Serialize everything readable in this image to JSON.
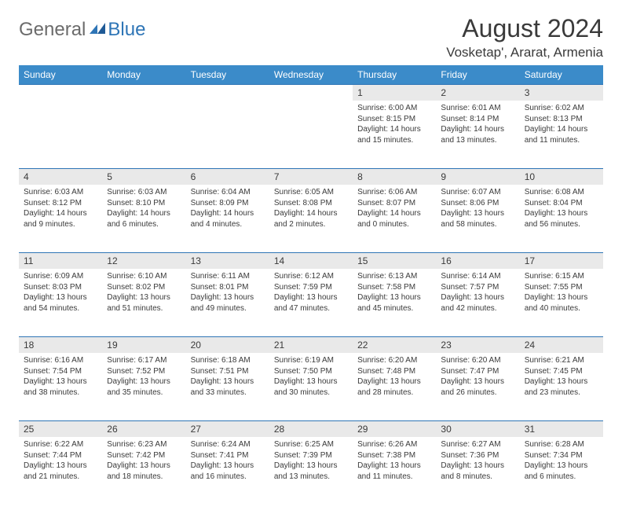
{
  "brand": {
    "part1": "General",
    "part2": "Blue"
  },
  "title": "August 2024",
  "location": "Vosketap', Ararat, Armenia",
  "colors": {
    "header_bg": "#3b8bc9",
    "daynum_bg": "#e9e9e9",
    "border": "#2e75b6",
    "text": "#3a3a3a",
    "logo_gray": "#6b6b6b",
    "logo_blue": "#2e75b6",
    "background": "#ffffff"
  },
  "day_headers": [
    "Sunday",
    "Monday",
    "Tuesday",
    "Wednesday",
    "Thursday",
    "Friday",
    "Saturday"
  ],
  "weeks": [
    [
      null,
      null,
      null,
      null,
      {
        "n": "1",
        "sr": "6:00 AM",
        "ss": "8:15 PM",
        "dl": "14 hours and 15 minutes."
      },
      {
        "n": "2",
        "sr": "6:01 AM",
        "ss": "8:14 PM",
        "dl": "14 hours and 13 minutes."
      },
      {
        "n": "3",
        "sr": "6:02 AM",
        "ss": "8:13 PM",
        "dl": "14 hours and 11 minutes."
      }
    ],
    [
      {
        "n": "4",
        "sr": "6:03 AM",
        "ss": "8:12 PM",
        "dl": "14 hours and 9 minutes."
      },
      {
        "n": "5",
        "sr": "6:03 AM",
        "ss": "8:10 PM",
        "dl": "14 hours and 6 minutes."
      },
      {
        "n": "6",
        "sr": "6:04 AM",
        "ss": "8:09 PM",
        "dl": "14 hours and 4 minutes."
      },
      {
        "n": "7",
        "sr": "6:05 AM",
        "ss": "8:08 PM",
        "dl": "14 hours and 2 minutes."
      },
      {
        "n": "8",
        "sr": "6:06 AM",
        "ss": "8:07 PM",
        "dl": "14 hours and 0 minutes."
      },
      {
        "n": "9",
        "sr": "6:07 AM",
        "ss": "8:06 PM",
        "dl": "13 hours and 58 minutes."
      },
      {
        "n": "10",
        "sr": "6:08 AM",
        "ss": "8:04 PM",
        "dl": "13 hours and 56 minutes."
      }
    ],
    [
      {
        "n": "11",
        "sr": "6:09 AM",
        "ss": "8:03 PM",
        "dl": "13 hours and 54 minutes."
      },
      {
        "n": "12",
        "sr": "6:10 AM",
        "ss": "8:02 PM",
        "dl": "13 hours and 51 minutes."
      },
      {
        "n": "13",
        "sr": "6:11 AM",
        "ss": "8:01 PM",
        "dl": "13 hours and 49 minutes."
      },
      {
        "n": "14",
        "sr": "6:12 AM",
        "ss": "7:59 PM",
        "dl": "13 hours and 47 minutes."
      },
      {
        "n": "15",
        "sr": "6:13 AM",
        "ss": "7:58 PM",
        "dl": "13 hours and 45 minutes."
      },
      {
        "n": "16",
        "sr": "6:14 AM",
        "ss": "7:57 PM",
        "dl": "13 hours and 42 minutes."
      },
      {
        "n": "17",
        "sr": "6:15 AM",
        "ss": "7:55 PM",
        "dl": "13 hours and 40 minutes."
      }
    ],
    [
      {
        "n": "18",
        "sr": "6:16 AM",
        "ss": "7:54 PM",
        "dl": "13 hours and 38 minutes."
      },
      {
        "n": "19",
        "sr": "6:17 AM",
        "ss": "7:52 PM",
        "dl": "13 hours and 35 minutes."
      },
      {
        "n": "20",
        "sr": "6:18 AM",
        "ss": "7:51 PM",
        "dl": "13 hours and 33 minutes."
      },
      {
        "n": "21",
        "sr": "6:19 AM",
        "ss": "7:50 PM",
        "dl": "13 hours and 30 minutes."
      },
      {
        "n": "22",
        "sr": "6:20 AM",
        "ss": "7:48 PM",
        "dl": "13 hours and 28 minutes."
      },
      {
        "n": "23",
        "sr": "6:20 AM",
        "ss": "7:47 PM",
        "dl": "13 hours and 26 minutes."
      },
      {
        "n": "24",
        "sr": "6:21 AM",
        "ss": "7:45 PM",
        "dl": "13 hours and 23 minutes."
      }
    ],
    [
      {
        "n": "25",
        "sr": "6:22 AM",
        "ss": "7:44 PM",
        "dl": "13 hours and 21 minutes."
      },
      {
        "n": "26",
        "sr": "6:23 AM",
        "ss": "7:42 PM",
        "dl": "13 hours and 18 minutes."
      },
      {
        "n": "27",
        "sr": "6:24 AM",
        "ss": "7:41 PM",
        "dl": "13 hours and 16 minutes."
      },
      {
        "n": "28",
        "sr": "6:25 AM",
        "ss": "7:39 PM",
        "dl": "13 hours and 13 minutes."
      },
      {
        "n": "29",
        "sr": "6:26 AM",
        "ss": "7:38 PM",
        "dl": "13 hours and 11 minutes."
      },
      {
        "n": "30",
        "sr": "6:27 AM",
        "ss": "7:36 PM",
        "dl": "13 hours and 8 minutes."
      },
      {
        "n": "31",
        "sr": "6:28 AM",
        "ss": "7:34 PM",
        "dl": "13 hours and 6 minutes."
      }
    ]
  ],
  "labels": {
    "sunrise": "Sunrise:",
    "sunset": "Sunset:",
    "daylight": "Daylight:"
  }
}
